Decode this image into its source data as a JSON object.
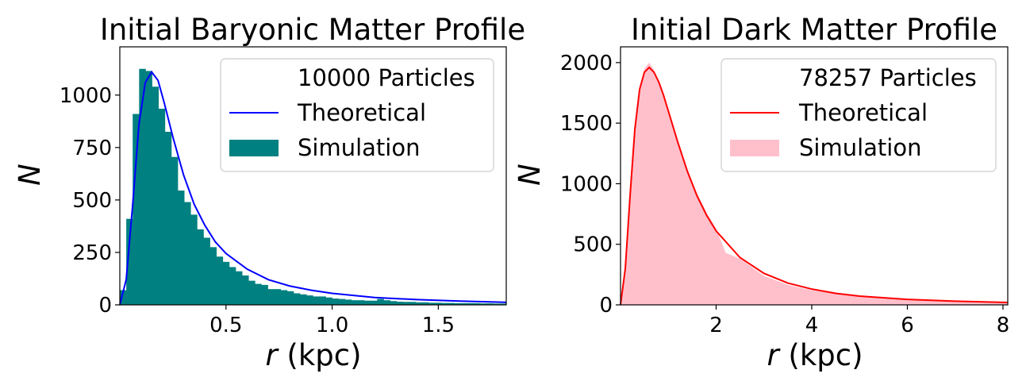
{
  "chart_data": [
    {
      "type": "bar",
      "title": "Initial Baryonic Matter Profile",
      "xlabel_var": "r",
      "xlabel_unit": "(kpc)",
      "ylabel": "N",
      "xlim": [
        0.0,
        1.82
      ],
      "ylim": [
        0,
        1230
      ],
      "xticks": [
        0.5,
        1.0,
        1.5
      ],
      "xtick_labels": [
        "0.5",
        "1.0",
        "1.5"
      ],
      "yticks": [
        0,
        250,
        500,
        750,
        1000
      ],
      "ytick_labels": [
        "0",
        "250",
        "500",
        "750",
        "1000"
      ],
      "legend_position": "top-right",
      "legend": [
        "10000 Particles",
        "Theoretical",
        "Simulation"
      ],
      "colors": {
        "hist": "#008080",
        "line": "#0000ff"
      },
      "series": [
        {
          "name": "Simulation",
          "kind": "histogram",
          "bin_start": 0.0,
          "bin_width": 0.0303,
          "values": [
            70,
            410,
            910,
            1125,
            1115,
            1040,
            935,
            825,
            705,
            545,
            490,
            430,
            360,
            320,
            275,
            230,
            205,
            180,
            160,
            140,
            115,
            100,
            95,
            75,
            75,
            70,
            65,
            55,
            50,
            45,
            40,
            40,
            35,
            30,
            28,
            25,
            22,
            22,
            20,
            20,
            28,
            22,
            18,
            15,
            14,
            14,
            12,
            12,
            10,
            10,
            9,
            9,
            8,
            8,
            8,
            8,
            7,
            7,
            6,
            6
          ]
        },
        {
          "name": "Theoretical",
          "kind": "curve",
          "x": [
            0.0,
            0.03,
            0.06,
            0.09,
            0.12,
            0.15,
            0.18,
            0.21,
            0.25,
            0.3,
            0.35,
            0.4,
            0.45,
            0.5,
            0.6,
            0.7,
            0.8,
            0.9,
            1.0,
            1.2,
            1.4,
            1.6,
            1.82
          ],
          "y": [
            0,
            120,
            470,
            860,
            1060,
            1110,
            1070,
            960,
            800,
            620,
            480,
            380,
            300,
            245,
            170,
            120,
            90,
            70,
            55,
            35,
            25,
            18,
            12
          ]
        }
      ]
    },
    {
      "type": "area",
      "title": "Initial Dark Matter Profile",
      "xlabel_var": "r",
      "xlabel_unit": "(kpc)",
      "ylabel": "N",
      "xlim": [
        0.0,
        8.1
      ],
      "ylim": [
        0,
        2130
      ],
      "xticks": [
        2,
        4,
        6,
        8
      ],
      "xtick_labels": [
        "2",
        "4",
        "6",
        "8"
      ],
      "yticks": [
        0,
        500,
        1000,
        1500,
        2000
      ],
      "ytick_labels": [
        "0",
        "500",
        "1000",
        "1500",
        "2000"
      ],
      "legend_position": "top-right",
      "legend": [
        "78257 Particles",
        "Theoretical",
        "Simulation"
      ],
      "colors": {
        "hist": "#ffc0cb",
        "line": "#ff0000"
      },
      "series": [
        {
          "name": "Simulation",
          "kind": "histogram-fill",
          "x": [
            0.0,
            0.1,
            0.2,
            0.3,
            0.4,
            0.5,
            0.6,
            0.7,
            0.8,
            0.9,
            1.0,
            1.2,
            1.4,
            1.6,
            1.8,
            2.0,
            2.2,
            2.5,
            3.0,
            3.5,
            4.0,
            4.5,
            5.0,
            6.0,
            7.0,
            8.1
          ],
          "y": [
            0,
            350,
            1000,
            1500,
            1800,
            1950,
            2000,
            1940,
            1850,
            1750,
            1620,
            1360,
            1120,
            920,
            760,
            630,
            430,
            380,
            240,
            165,
            120,
            90,
            70,
            45,
            30,
            20
          ]
        },
        {
          "name": "Theoretical",
          "kind": "curve",
          "x": [
            0.0,
            0.1,
            0.2,
            0.3,
            0.4,
            0.5,
            0.6,
            0.7,
            0.8,
            0.9,
            1.0,
            1.2,
            1.4,
            1.6,
            1.8,
            2.0,
            2.5,
            3.0,
            3.5,
            4.0,
            4.5,
            5.0,
            6.0,
            7.0,
            8.1
          ],
          "y": [
            0,
            300,
            900,
            1450,
            1780,
            1920,
            1960,
            1920,
            1840,
            1730,
            1600,
            1340,
            1100,
            900,
            740,
            610,
            390,
            260,
            180,
            130,
            95,
            72,
            45,
            30,
            20
          ]
        }
      ]
    }
  ]
}
